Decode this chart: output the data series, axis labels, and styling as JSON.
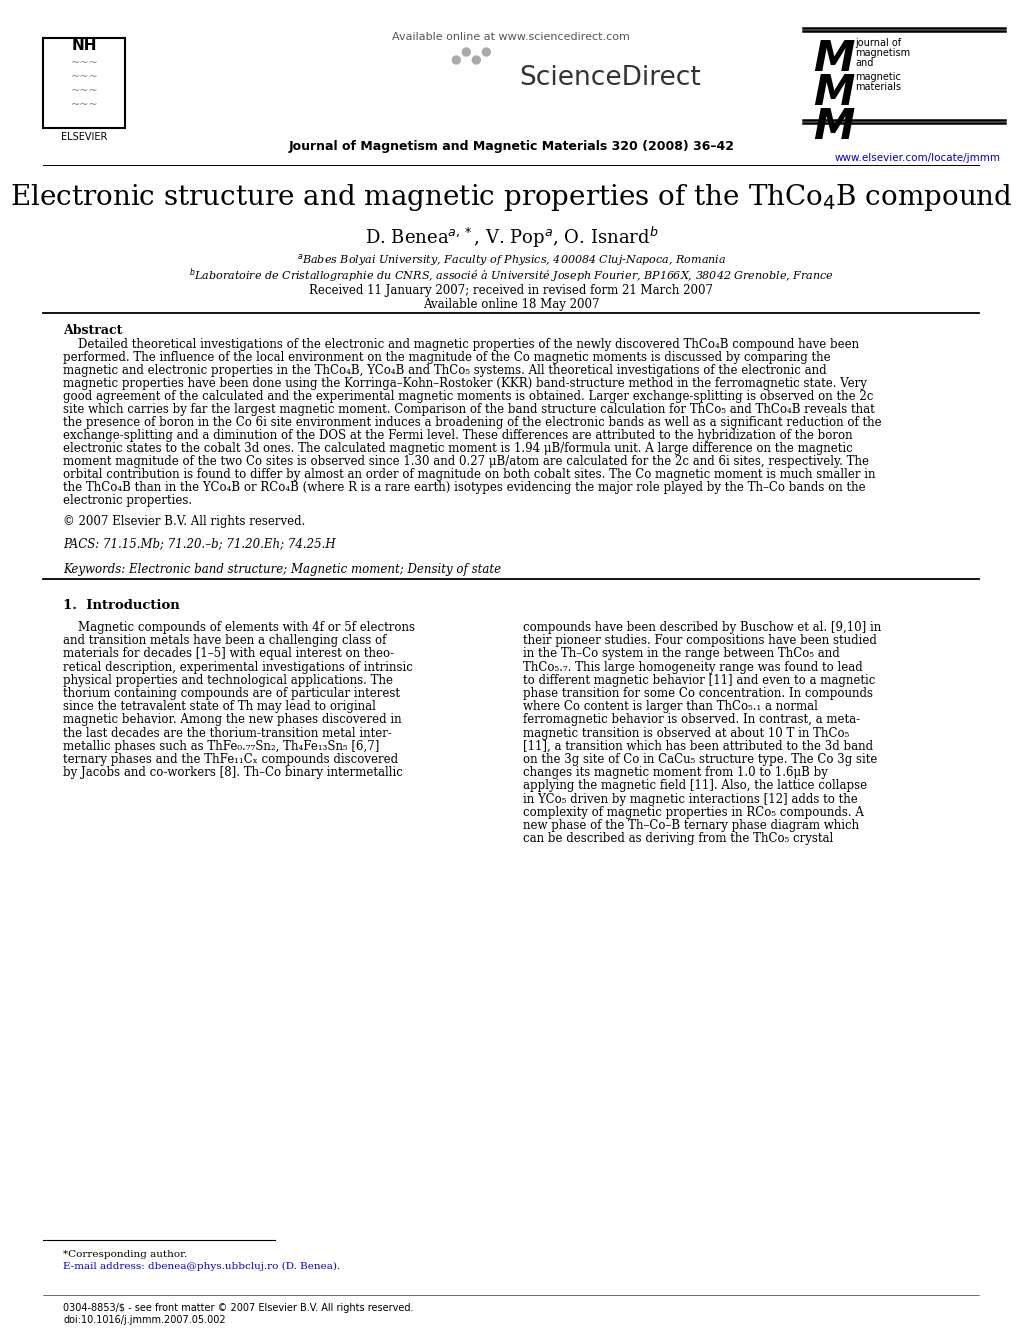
{
  "title": "Electronic structure and magnetic properties of the ThCo₄B compound",
  "authors_line": "D. Benea$^{a,*}$, V. Pop$^a$, O. Isnard$^b$",
  "affiliation_a": "$^a$Babes Bolyai University, Faculty of Physics, 400084 Cluj-Napoca, Romania",
  "affiliation_b": "$^b$Laboratoire de Cristallographie du CNRS, associé à Université Joseph Fourier, BP166X, 38042 Grenoble, France",
  "received": "Received 11 January 2007; received in revised form 21 March 2007",
  "available": "Available online 18 May 2007",
  "journal_header": "Available online at www.sciencedirect.com",
  "journal_name": "Journal of Magnetism and Magnetic Materials 320 (2008) 36–42",
  "journal_url": "www.elsevier.com/locate/jmmm",
  "abstract_title": "Abstract",
  "abstract_lines": [
    "    Detailed theoretical investigations of the electronic and magnetic properties of the newly discovered ThCo₄B compound have been",
    "performed. The influence of the local environment on the magnitude of the Co magnetic moments is discussed by comparing the",
    "magnetic and electronic properties in the ThCo₄B, YCo₄B and ThCo₅ systems. All theoretical investigations of the electronic and",
    "magnetic properties have been done using the Korringa–Kohn–Rostoker (KKR) band-structure method in the ferromagnetic state. Very",
    "good agreement of the calculated and the experimental magnetic moments is obtained. Larger exchange-splitting is observed on the 2c",
    "site which carries by far the largest magnetic moment. Comparison of the band structure calculation for ThCo₅ and ThCo₄B reveals that",
    "the presence of boron in the Co 6i site environment induces a broadening of the electronic bands as well as a significant reduction of the",
    "exchange-splitting and a diminution of the DOS at the Fermi level. These differences are attributed to the hybridization of the boron",
    "electronic states to the cobalt 3d ones. The calculated magnetic moment is 1.94 μB/formula unit. A large difference on the magnetic",
    "moment magnitude of the two Co sites is observed since 1.30 and 0.27 μB/atom are calculated for the 2c and 6i sites, respectively. The",
    "orbital contribution is found to differ by almost an order of magnitude on both cobalt sites. The Co magnetic moment is much smaller in",
    "the ThCo₄B than in the YCo₄B or RCo₄B (where R is a rare earth) isotypes evidencing the major role played by the Th–Co bands on the",
    "electronic properties."
  ],
  "copyright": "© 2007 Elsevier B.V. All rights reserved.",
  "pacs": "PACS: 71.15.Mb; 71.20.–b; 71.20.Eh; 74.25.H",
  "keywords": "Keywords: Electronic band structure; Magnetic moment; Density of state",
  "section1_title": "1.  Introduction",
  "intro_col1_lines": [
    "    Magnetic compounds of elements with 4f or 5f electrons",
    "and transition metals have been a challenging class of",
    "materials for decades [1–5] with equal interest on theo-",
    "retical description, experimental investigations of intrinsic",
    "physical properties and technological applications. The",
    "thorium containing compounds are of particular interest",
    "since the tetravalent state of Th may lead to original",
    "magnetic behavior. Among the new phases discovered in",
    "the last decades are the thorium-transition metal inter-",
    "metallic phases such as ThFe₀.₇₇Sn₂, Th₄Fe₁₃Sn₅ [6,7]",
    "ternary phases and the ThFe₁₁Cₓ compounds discovered",
    "by Jacobs and co-workers [8]. Th–Co binary intermetallic"
  ],
  "intro_col2_lines": [
    "compounds have been described by Buschow et al. [9,10] in",
    "their pioneer studies. Four compositions have been studied",
    "in the Th–Co system in the range between ThCo₅ and",
    "ThCo₅.₇. This large homogeneity range was found to lead",
    "to different magnetic behavior [11] and even to a magnetic",
    "phase transition for some Co concentration. In compounds",
    "where Co content is larger than ThCo₅.₁ a normal",
    "ferromagnetic behavior is observed. In contrast, a meta-",
    "magnetic transition is observed at about 10 T in ThCo₅",
    "[11], a transition which has been attributed to the 3d band",
    "on the 3g site of Co in CaCu₅ structure type. The Co 3g site",
    "changes its magnetic moment from 1.0 to 1.6μB by",
    "applying the magnetic field [11]. Also, the lattice collapse",
    "in YCo₅ driven by magnetic interactions [12] adds to the",
    "complexity of magnetic properties in RCo₅ compounds. A",
    "new phase of the Th–Co–B ternary phase diagram which",
    "can be described as deriving from the ThCo₅ crystal"
  ],
  "footnote1": "*Corresponding author.",
  "footnote2": "E-mail address: dbenea@phys.ubbcluj.ro (D. Benea).",
  "footer1": "0304-8853/$ - see front matter © 2007 Elsevier B.V. All rights reserved.",
  "footer2": "doi:10.1016/j.jmmm.2007.05.002",
  "bg_color": "#ffffff",
  "text_color": "#000000",
  "link_color": "#0000cc"
}
